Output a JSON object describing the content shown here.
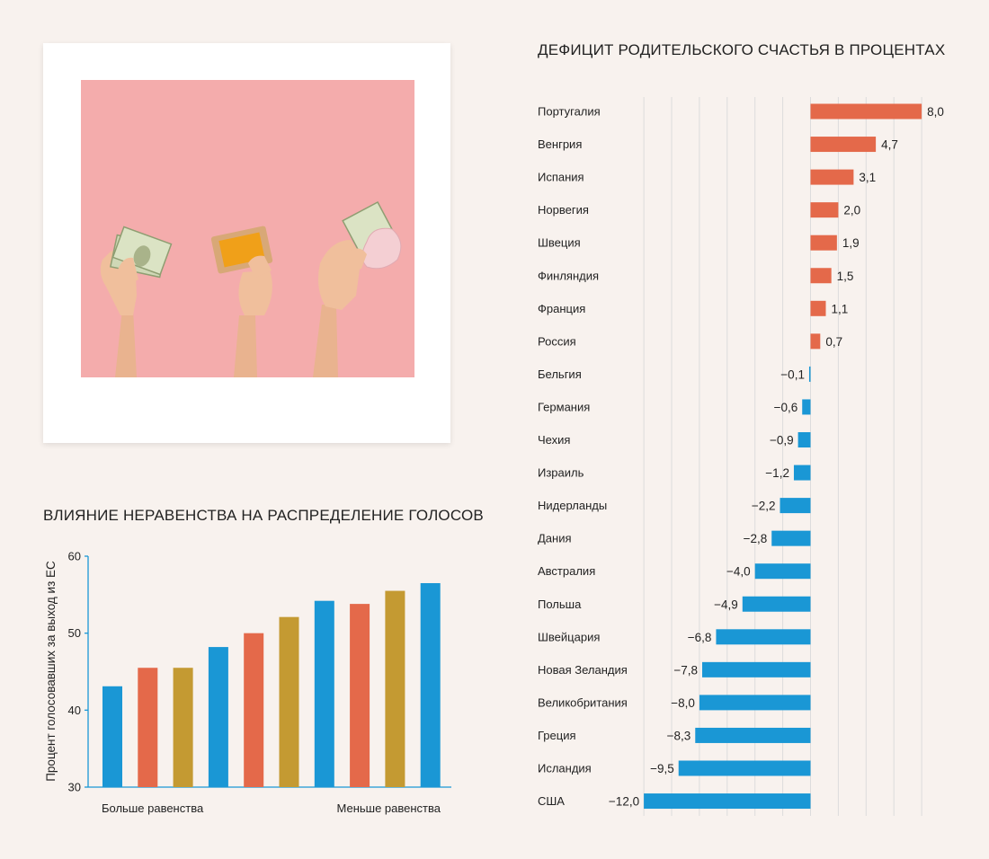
{
  "colors": {
    "background": "#f8f2ee",
    "frame": "#ffffff",
    "photo_background": "#f4acac",
    "blue": "#1a97d5",
    "orange": "#e4694a",
    "gold": "#c49a32",
    "grid": "#dcdcdc"
  },
  "photo": {
    "icons": [
      "hand-holding-dollar-bills-icon",
      "hand-holding-wallet-icon",
      "hand-holding-dollar-and-purse-icon"
    ]
  },
  "chart_data": [
    {
      "type": "bar",
      "title": "ВЛИЯНИЕ НЕРАВЕНСТВА НА РАСПРЕДЕЛЕНИЕ ГОЛОСОВ",
      "xlabel": "",
      "ylabel": "Процент голосовавших за выход из ЕС",
      "ylim": [
        30,
        60
      ],
      "yticks": [
        "30",
        "40",
        "50",
        "60"
      ],
      "x_axis_labels": {
        "left": "Больше равенства",
        "right": "Меньше равенства"
      },
      "values": [
        43.1,
        45.5,
        45.5,
        48.2,
        50.0,
        52.1,
        54.2,
        53.8,
        55.5,
        56.5
      ],
      "bar_colors": [
        "#1a97d5",
        "#e4694a",
        "#c49a32",
        "#1a97d5",
        "#e4694a",
        "#c49a32",
        "#1a97d5",
        "#e4694a",
        "#c49a32",
        "#1a97d5"
      ],
      "grid": false
    },
    {
      "type": "bar",
      "orientation": "horizontal",
      "title": "ДЕФИЦИТ РОДИТЕЛЬСКОГО СЧАСТЬЯ В ПРОЦЕНТАХ",
      "xlim": [
        -12,
        8
      ],
      "grid": true,
      "positive_color": "#e4694a",
      "negative_color": "#1a97d5",
      "categories": [
        "Португалия",
        "Венгрия",
        "Испания",
        "Норвегия",
        "Швеция",
        "Финляндия",
        "Франция",
        "Россия",
        "Бельгия",
        "Германия",
        "Чехия",
        "Израиль",
        "Нидерланды",
        "Дания",
        "Австралия",
        "Польша",
        "Швейцария",
        "Новая Зеландия",
        "Великобритания",
        "Греция",
        "Исландия",
        "США"
      ],
      "values": [
        8.0,
        4.7,
        3.1,
        2.0,
        1.9,
        1.5,
        1.1,
        0.7,
        -0.1,
        -0.6,
        -0.9,
        -1.2,
        -2.2,
        -2.8,
        -4.0,
        -4.9,
        -6.8,
        -7.8,
        -8.0,
        -8.3,
        -9.5,
        -12.0
      ],
      "value_labels": [
        "8,0",
        "4,7",
        "3,1",
        "2,0",
        "1,9",
        "1,5",
        "1,1",
        "0,7",
        "−0,1",
        "−0,6",
        "−0,9",
        "−1,2",
        "−2,2",
        "−2,8",
        "−4,0",
        "−4,9",
        "−6,8",
        "−7,8",
        "−8,0",
        "−8,3",
        "−9,5",
        "−12,0"
      ]
    }
  ]
}
